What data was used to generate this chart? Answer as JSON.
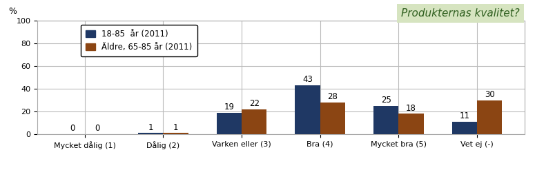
{
  "categories": [
    "Mycket dålig (1)",
    "Dålig (2)",
    "Varken eller (3)",
    "Bra (4)",
    "Mycket bra (5)",
    "Vet ej (-)"
  ],
  "series1_label": "18-85  år (2011)",
  "series2_label": "Äldre, 65-85 år (2011)",
  "series1_values": [
    0,
    1,
    19,
    43,
    25,
    11
  ],
  "series2_values": [
    0,
    1,
    22,
    28,
    18,
    30
  ],
  "series1_color": "#1F3864",
  "series2_color": "#8B4513",
  "ylabel_text": "%",
  "ylim": [
    0,
    100
  ],
  "yticks": [
    0,
    20,
    40,
    60,
    80,
    100
  ],
  "title_box_text": "Produkternas kvalitet?",
  "title_box_facecolor": "#D6E4C0",
  "background_color": "#FFFFFF",
  "grid_color": "#BBBBBB",
  "label_fontsize": 8.5,
  "tick_fontsize": 8,
  "bar_width": 0.32
}
